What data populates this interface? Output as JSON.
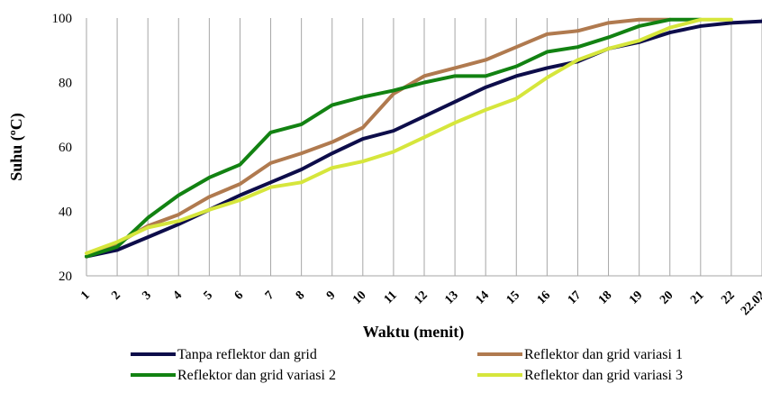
{
  "chart_data": {
    "type": "line",
    "title": "",
    "xlabel": "Waktu (menit)",
    "ylabel": "Suhu (ºC)",
    "ylim": [
      20,
      100
    ],
    "yticks": [
      20,
      40,
      60,
      80,
      100
    ],
    "grid": "vertical",
    "legend_position": "bottom",
    "categories": [
      "1",
      "2",
      "3",
      "4",
      "5",
      "6",
      "7",
      "8",
      "9",
      "10",
      "11",
      "12",
      "13",
      "14",
      "15",
      "16",
      "17",
      "18",
      "19",
      "20",
      "21",
      "22",
      "22.02"
    ],
    "series": [
      {
        "name": "Tanpa reflektor dan grid",
        "color": "#0d0d4a",
        "values": [
          26,
          28,
          32,
          36,
          40.5,
          45,
          49,
          53,
          58,
          62.5,
          65,
          69.5,
          74,
          78.5,
          82,
          84.5,
          86.5,
          90.5,
          92.5,
          95.5,
          97.5,
          98.5,
          99
        ]
      },
      {
        "name": "Reflektor dan grid variasi 1",
        "color": "#b07a4f",
        "values": [
          26,
          30,
          35.5,
          39,
          44.5,
          48.5,
          55,
          58,
          61.5,
          66,
          76.5,
          82,
          84.5,
          87,
          91,
          95,
          96,
          98.5,
          99.5,
          99.5,
          null,
          null,
          null
        ]
      },
      {
        "name": "Reflektor dan grid variasi 2",
        "color": "#128212",
        "values": [
          26,
          29,
          38,
          45,
          50.5,
          54.5,
          64.5,
          67,
          73,
          75.5,
          77.5,
          80,
          82,
          82,
          85,
          89.5,
          91,
          94,
          97.5,
          99.5,
          99.5,
          null,
          null
        ]
      },
      {
        "name": "Reflektor dan grid variasi 3",
        "color": "#d6e63c",
        "values": [
          27,
          30.5,
          35,
          37,
          40.5,
          43.5,
          47.5,
          49,
          53.5,
          55.5,
          58.5,
          63,
          67.5,
          71.5,
          75,
          81.5,
          87,
          90.5,
          93,
          97,
          99.5,
          99.5,
          null
        ]
      }
    ]
  }
}
